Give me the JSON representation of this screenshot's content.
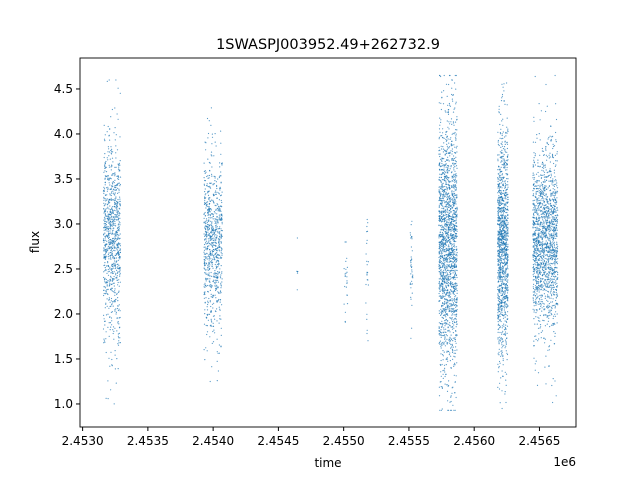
{
  "chart_data": {
    "type": "scatter",
    "title": "1SWASPJ003952.49+262732.9",
    "xlabel": "time",
    "ylabel": "flux",
    "x_offset_label": "1e6",
    "xlim": [
      2.45298,
      2.45678
    ],
    "ylim": [
      0.744,
      4.844
    ],
    "x_ticks": [
      "2.4530",
      "2.4535",
      "2.4540",
      "2.4545",
      "2.4550",
      "2.4555",
      "2.4560",
      "2.4565"
    ],
    "x_tick_values": [
      2.453,
      2.4535,
      2.454,
      2.4545,
      2.455,
      2.4555,
      2.456,
      2.4565
    ],
    "y_ticks": [
      "1.0",
      "1.5",
      "2.0",
      "2.5",
      "3.0",
      "3.5",
      "4.0",
      "4.5"
    ],
    "y_tick_values": [
      1.0,
      1.5,
      2.0,
      2.5,
      3.0,
      3.5,
      4.0,
      4.5
    ],
    "grid": false,
    "marker_color": "#1f77b4",
    "observing_seasons": [
      {
        "time_range": [
          2.45316,
          2.45329
        ],
        "flux_core": [
          1.95,
          3.7
        ],
        "flux_range": [
          0.93,
          4.6
        ],
        "approx_points": 900
      },
      {
        "time_range": [
          2.45393,
          2.45407
        ],
        "flux_core": [
          2.05,
          3.5
        ],
        "flux_range": [
          1.25,
          4.3
        ],
        "approx_points": 800
      },
      {
        "time_range": [
          2.45464,
          2.45465
        ],
        "flux_core": [
          2.3,
          2.7
        ],
        "flux_range": [
          1.48,
          2.98
        ],
        "approx_points": 6
      },
      {
        "time_range": [
          2.455,
          2.45503
        ],
        "flux_core": [
          2.0,
          2.8
        ],
        "flux_range": [
          1.37,
          2.8
        ],
        "approx_points": 25
      },
      {
        "time_range": [
          2.45517,
          2.45519
        ],
        "flux_core": [
          2.0,
          3.0
        ],
        "flux_range": [
          1.7,
          3.05
        ],
        "approx_points": 25
      },
      {
        "time_range": [
          2.45551,
          2.45553
        ],
        "flux_core": [
          2.0,
          3.0
        ],
        "flux_range": [
          1.7,
          3.4
        ],
        "approx_points": 40
      },
      {
        "time_range": [
          2.45573,
          2.45587
        ],
        "flux_core": [
          1.6,
          3.9
        ],
        "flux_range": [
          0.93,
          4.65
        ],
        "approx_points": 1800
      },
      {
        "time_range": [
          2.45618,
          2.45626
        ],
        "flux_core": [
          1.8,
          3.8
        ],
        "flux_range": [
          0.95,
          4.65
        ],
        "approx_points": 1200
      },
      {
        "time_range": [
          2.45645,
          2.45664
        ],
        "flux_core": [
          2.0,
          3.6
        ],
        "flux_range": [
          0.95,
          4.65
        ],
        "approx_points": 1600
      }
    ]
  }
}
